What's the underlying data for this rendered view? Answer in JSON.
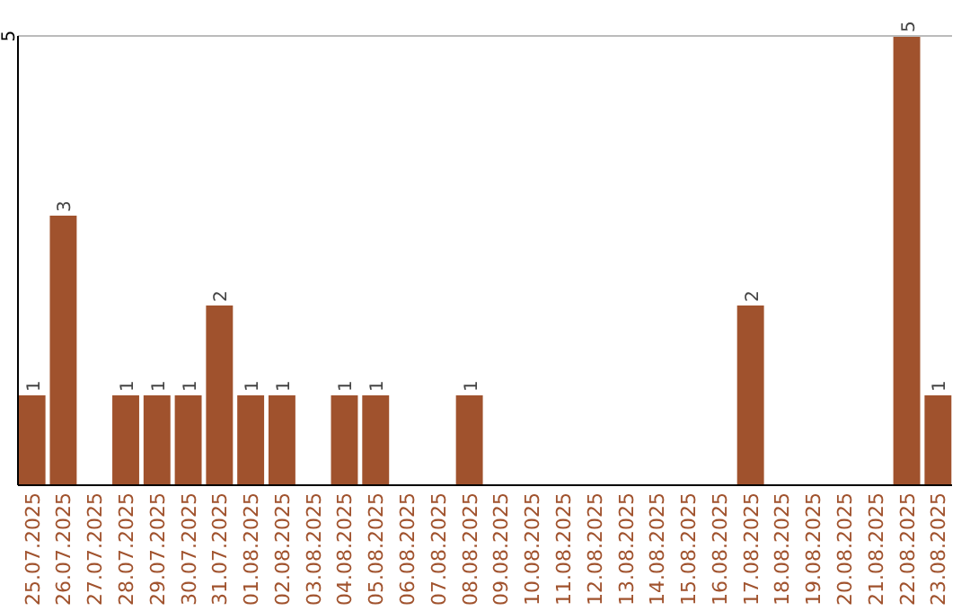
{
  "chart_data": {
    "type": "bar",
    "categories": [
      "25.07.2025",
      "26.07.2025",
      "27.07.2025",
      "28.07.2025",
      "29.07.2025",
      "30.07.2025",
      "31.07.2025",
      "01.08.2025",
      "02.08.2025",
      "03.08.2025",
      "04.08.2025",
      "05.08.2025",
      "06.08.2025",
      "07.08.2025",
      "08.08.2025",
      "09.08.2025",
      "10.08.2025",
      "11.08.2025",
      "12.08.2025",
      "13.08.2025",
      "14.08.2025",
      "15.08.2025",
      "16.08.2025",
      "17.08.2025",
      "18.08.2025",
      "19.08.2025",
      "20.08.2025",
      "21.08.2025",
      "22.08.2025",
      "23.08.2025"
    ],
    "values": [
      1,
      3,
      0,
      1,
      1,
      1,
      2,
      1,
      1,
      0,
      1,
      1,
      0,
      0,
      1,
      0,
      0,
      0,
      0,
      0,
      0,
      0,
      0,
      2,
      0,
      0,
      0,
      0,
      5,
      1
    ],
    "value_labels": [
      "1",
      "3",
      null,
      "1",
      "1",
      "1",
      "2",
      "1",
      "1",
      null,
      "1",
      "1",
      null,
      null,
      "1",
      null,
      null,
      null,
      null,
      null,
      null,
      null,
      null,
      "2",
      null,
      null,
      null,
      null,
      "5",
      "1"
    ],
    "color": "#a0522d",
    "ylim": [
      0,
      5
    ],
    "yticks": [
      5
    ]
  }
}
